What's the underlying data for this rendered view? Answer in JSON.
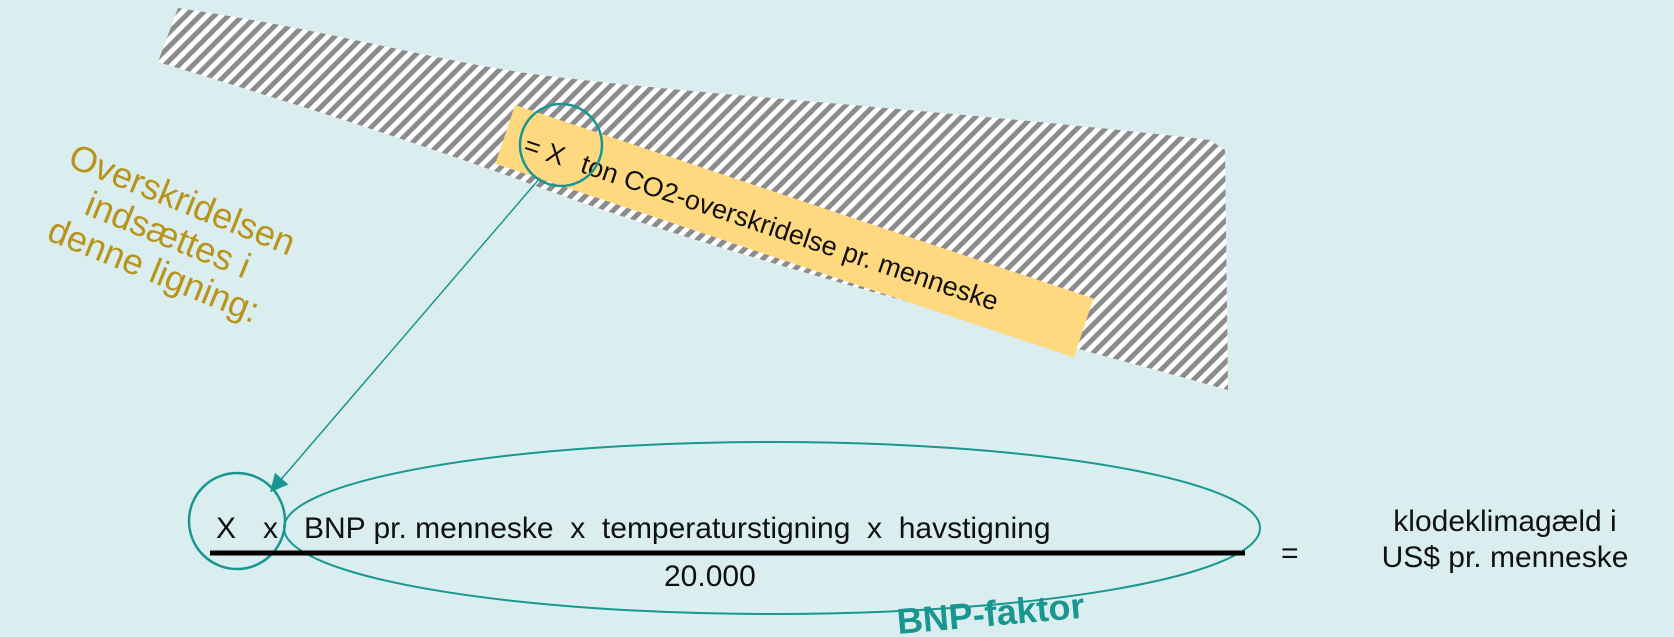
{
  "callout": {
    "equals_x": "= X",
    "text": "ton CO2-overskridelse pr. menneske"
  },
  "side_note": {
    "line1": "Overskridelsen",
    "line2": "indsættes i",
    "line3": "denne ligning:"
  },
  "equation": {
    "x_symbol": "X",
    "times1": "x",
    "numerator": "BNP pr. menneske  x  temperaturstigning  x  havstigning",
    "denominator": "20.000",
    "equals": "=",
    "result_line1": "klodeklimagæld i",
    "result_line2": "US$ pr. menneske"
  },
  "bnp_label": "BNP-faktor",
  "colors": {
    "background": "#daeef0",
    "stripe_dark": "#8a8a8a",
    "callout_fill": "#ffd980",
    "teal": "#19968f",
    "gold_text": "#b8941c"
  }
}
